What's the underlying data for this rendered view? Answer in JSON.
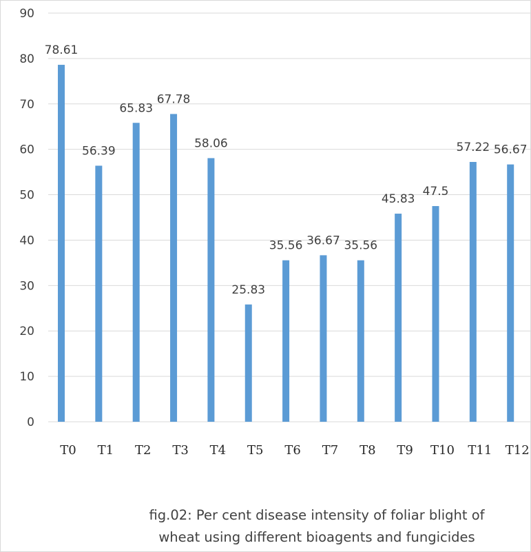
{
  "chart_data": {
    "type": "bar",
    "categories": [
      "T0",
      "T1",
      "T2",
      "T3",
      "T4",
      "T5",
      "T6",
      "T7",
      "T8",
      "T9",
      "T10",
      "T11",
      "T12"
    ],
    "values": [
      78.61,
      56.39,
      65.83,
      67.78,
      58.06,
      25.83,
      35.56,
      36.67,
      35.56,
      45.83,
      47.5,
      57.22,
      56.67
    ],
    "value_labels": [
      "78.61",
      "56.39",
      "65.83",
      "67.78",
      "58.06",
      "25.83",
      "35.56",
      "36.67",
      "35.56",
      "45.83",
      "47.5",
      "57.22",
      "56.67"
    ],
    "yticks": [
      "0",
      "10",
      "20",
      "30",
      "40",
      "50",
      "60",
      "70",
      "80",
      "90"
    ],
    "ylim": [
      0,
      90
    ],
    "grid": true,
    "legend": "none",
    "title": "",
    "xlabel": "",
    "ylabel": "",
    "bar_color": "#5b9bd5",
    "grid_color": "#d9d9d9",
    "caption_line1": "fig.02: Per cent disease intensity of foliar blight of",
    "caption_line2": "wheat using different bioagents and fungicides"
  }
}
